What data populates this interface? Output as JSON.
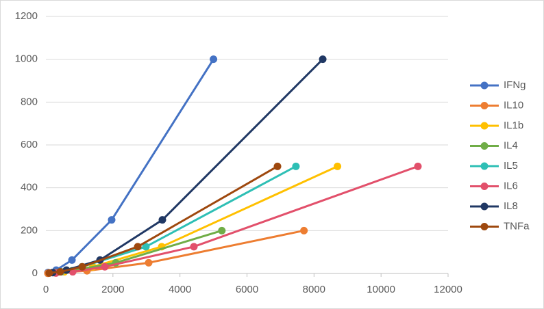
{
  "chart_data": {
    "type": "line",
    "xlim": [
      0,
      12000
    ],
    "xticks": [
      0,
      2000,
      4000,
      6000,
      8000,
      10000,
      12000
    ],
    "ylim": [
      0,
      1200
    ],
    "yticks": [
      0,
      200,
      400,
      600,
      800,
      1000,
      1200
    ],
    "grid": true,
    "legend": "right",
    "series": [
      {
        "name": "IFNg",
        "color": "#4472c4",
        "x": [
          60,
          307,
          777,
          1962,
          5000
        ],
        "values": [
          3.9,
          15.6,
          62.5,
          250,
          1000
        ]
      },
      {
        "name": "IL10",
        "color": "#ed7d31",
        "x": [
          60,
          266,
          1226,
          3066,
          7700
        ],
        "values": [
          0.8,
          3.1,
          12.5,
          50,
          200
        ]
      },
      {
        "name": "IL1b",
        "color": "#ffc000",
        "x": [
          550,
          1400,
          3455,
          8700
        ],
        "values": [
          7.8,
          31.25,
          125,
          500
        ]
      },
      {
        "name": "IL4",
        "color": "#70ad47",
        "x": [
          300,
          777,
          2085,
          5250
        ],
        "values": [
          3.1,
          12.5,
          50,
          200
        ]
      },
      {
        "name": "IL5",
        "color": "#2ebfb5",
        "x": [
          450,
          1080,
          2985,
          7460
        ],
        "values": [
          7.8,
          31.25,
          125,
          500
        ]
      },
      {
        "name": "IL6",
        "color": "#e2506b",
        "x": [
          300,
          800,
          1758,
          4415,
          11100
        ],
        "values": [
          2,
          7.8,
          31.25,
          125,
          500
        ]
      },
      {
        "name": "IL8",
        "color": "#203864",
        "x": [
          200,
          613,
          1615,
          3475,
          8260
        ],
        "values": [
          3.9,
          15.6,
          62.5,
          250,
          1000
        ]
      },
      {
        "name": "TNFa",
        "color": "#9e480e",
        "x": [
          100,
          430,
          1083,
          2740,
          6910
        ],
        "values": [
          2,
          7.8,
          31.25,
          125,
          500
        ]
      }
    ]
  }
}
